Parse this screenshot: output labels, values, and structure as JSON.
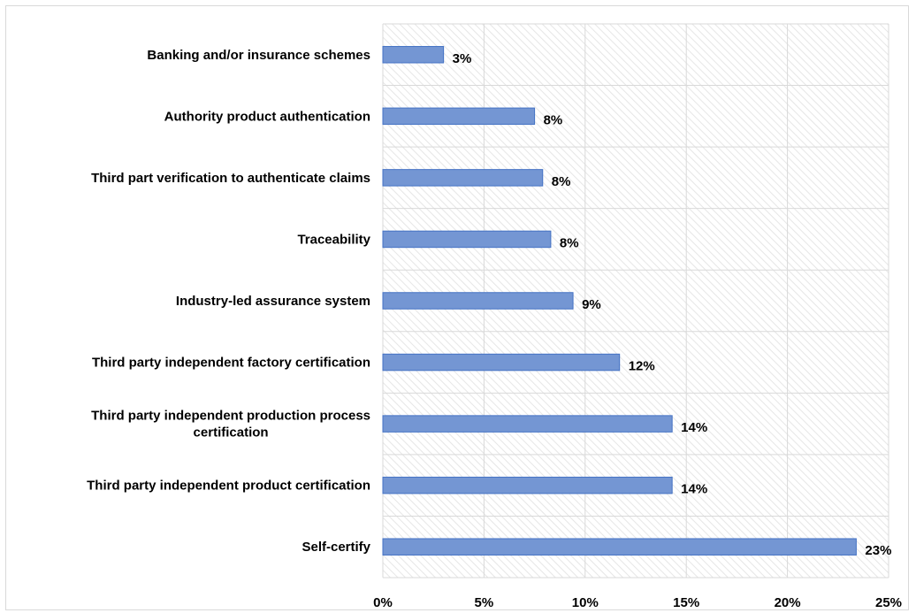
{
  "chart_data": {
    "type": "bar",
    "orientation": "horizontal",
    "title": "",
    "xlabel": "",
    "ylabel": "",
    "categories": [
      "Banking and/or insurance schemes",
      "Authority product authentication",
      "Third part verification to authenticate claims",
      "Traceability",
      "Industry-led assurance system",
      "Third party independent factory certification",
      "Third party independent production process certification",
      "Third party independent product certification",
      "Self-certify"
    ],
    "values": [
      3,
      8,
      8,
      8,
      9,
      12,
      14,
      14,
      23
    ],
    "plotted_values": [
      3,
      7.5,
      7.9,
      8.3,
      9.4,
      11.7,
      14.3,
      14.3,
      23.4
    ],
    "value_labels": [
      "3%",
      "8%",
      "8%",
      "8%",
      "9%",
      "12%",
      "14%",
      "14%",
      "23%"
    ],
    "xlim": [
      0,
      25
    ],
    "ticks": [
      0,
      5,
      10,
      15,
      20,
      25
    ],
    "tick_labels": [
      "0%",
      "5%",
      "10%",
      "15%",
      "20%",
      "25%"
    ],
    "grid": true,
    "legend": "none",
    "bar_color": "#7496d3",
    "bar_edge_color": "#4472c4"
  }
}
